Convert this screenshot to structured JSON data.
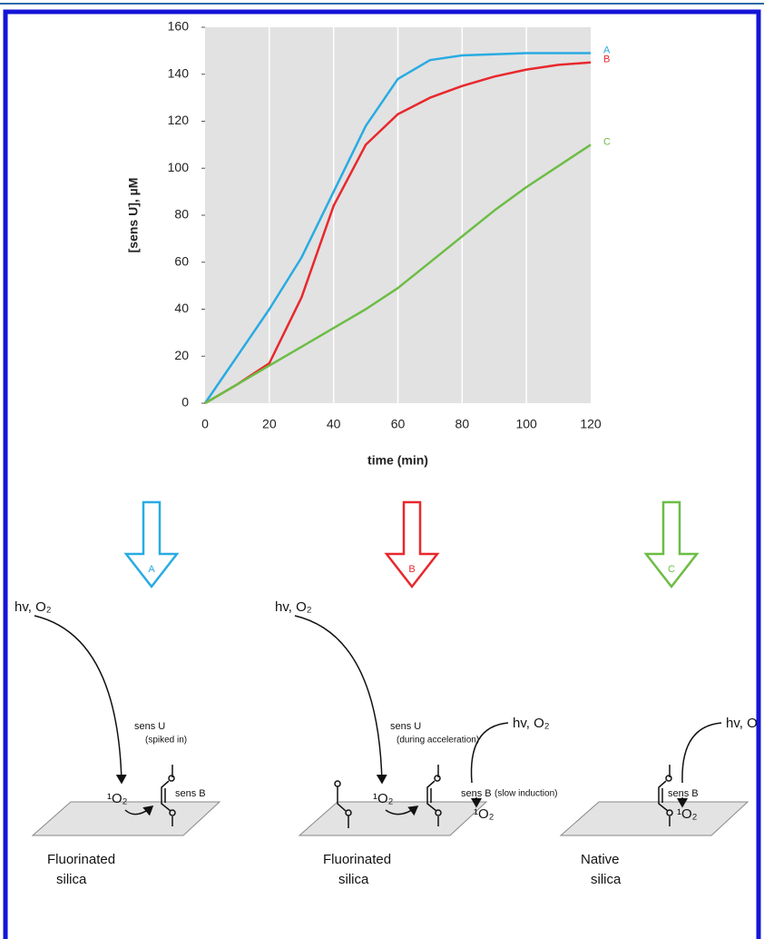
{
  "chart_data": {
    "type": "line",
    "x": [
      0,
      10,
      20,
      30,
      40,
      50,
      60,
      70,
      80,
      90,
      100,
      110,
      120
    ],
    "series": [
      {
        "name": "A",
        "color": "#29abe2",
        "values": [
          0,
          20,
          40,
          62,
          90,
          118,
          138,
          146,
          148,
          148.5,
          149,
          149,
          149
        ]
      },
      {
        "name": "B",
        "color": "#e8282d",
        "values": [
          0,
          8,
          17,
          45,
          84,
          110,
          123,
          130,
          135,
          139,
          142,
          144,
          145
        ]
      },
      {
        "name": "C",
        "color": "#6cbd45",
        "values": [
          0,
          8,
          16,
          24,
          32,
          40,
          49,
          60,
          71,
          82,
          92,
          101,
          110
        ]
      }
    ],
    "xlabel": "time (min)",
    "ylabel": "[sens U], µM",
    "xlim": [
      0,
      120
    ],
    "ylim": [
      0,
      160
    ],
    "xticks": [
      0,
      20,
      40,
      60,
      80,
      100,
      120
    ],
    "yticks": [
      0,
      20,
      40,
      60,
      80,
      100,
      120,
      140,
      160
    ],
    "grid": "x"
  },
  "diagram": {
    "arrows": [
      "A",
      "B",
      "C"
    ],
    "panels": [
      {
        "light": "hv, O₂",
        "sens_u": "sens U",
        "note": "(spiked in)",
        "singlet": "¹O₂",
        "sens_b": "sens B",
        "surface": [
          "Fluorinated",
          "silica"
        ]
      },
      {
        "light": "hv, O₂",
        "sens_u": "sens U",
        "note": "(during acceleration)",
        "singlet": "¹O₂",
        "light2": "hv, O₂",
        "sens_b": "sens B",
        "note2": "(slow induction)",
        "singlet2": "¹O₂",
        "surface": [
          "Fluorinated",
          "silica"
        ]
      },
      {
        "light2": "hv, O",
        "sens_b": "sens B",
        "singlet2": "¹O₂",
        "surface": [
          "Native",
          "silica"
        ]
      }
    ]
  }
}
